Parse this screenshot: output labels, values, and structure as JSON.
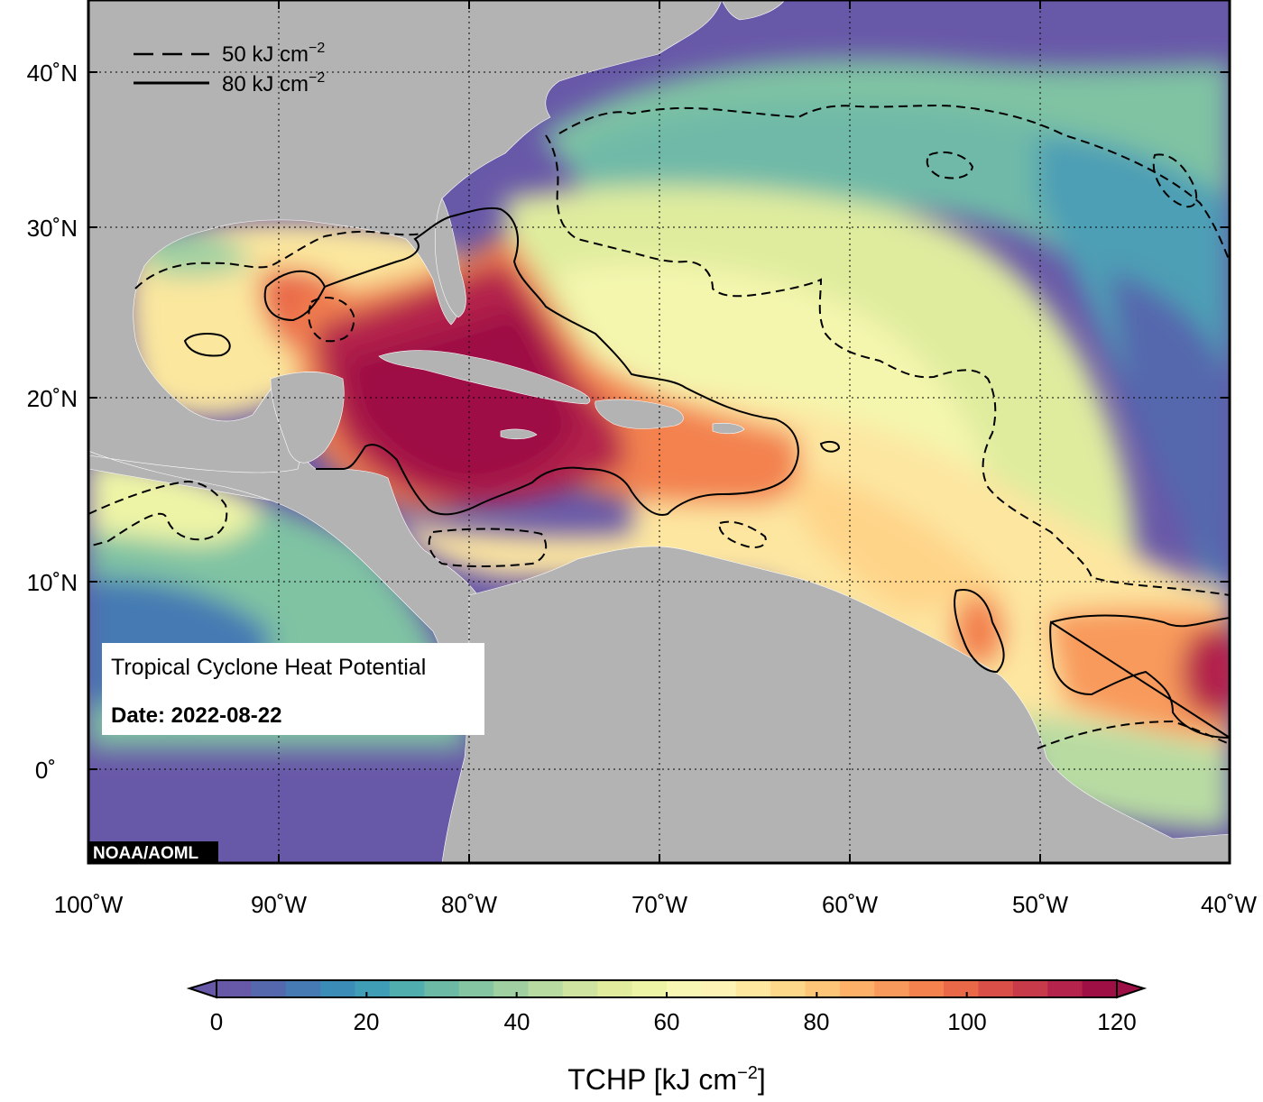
{
  "map": {
    "title": "Tropical Cyclone Heat Potential",
    "date_label": "Date: 2022-08-22",
    "credit": "NOAA/AOML",
    "lat_labels": [
      "40˚N",
      "30˚N",
      "20˚N",
      "10˚N",
      "0˚"
    ],
    "lon_labels": [
      "100˚W",
      "90˚W",
      "80˚W",
      "70˚W",
      "60˚W",
      "50˚W",
      "40˚W"
    ],
    "extent": {
      "lon_min": -100,
      "lon_max": -40,
      "lat_min": -5,
      "lat_max": 44
    },
    "grid": true,
    "legend": {
      "placement": "top-left",
      "items": [
        {
          "style": "dashed",
          "value": "50",
          "unit": "kJ cm",
          "exp": "−2"
        },
        {
          "style": "solid",
          "value": "80",
          "unit": "kJ cm",
          "exp": "−2"
        }
      ]
    },
    "colors": {
      "land": "#b3b3b3",
      "ocean_min": "#6858a8",
      "ocean_max": "#9e0f45"
    }
  },
  "colorbar": {
    "title": "TCHP [kJ cm",
    "title_exp": "−2",
    "title_end": "]",
    "min": 0,
    "max": 120,
    "tick_labels": [
      "0",
      "20",
      "40",
      "60",
      "80",
      "100",
      "120"
    ],
    "colors": [
      "#6858a8",
      "#5568ad",
      "#457ab3",
      "#3b8cb7",
      "#3f9db6",
      "#50aeaf",
      "#6cbaa6",
      "#86c5a2",
      "#a0d0a2",
      "#b8dba2",
      "#cee4a0",
      "#e1ec9c",
      "#eef4a6",
      "#f8f8b4",
      "#fdf3b4",
      "#fee8a0",
      "#fed88a",
      "#fdc577",
      "#fcb068",
      "#f89a5c",
      "#f3824f",
      "#e96848",
      "#da5048",
      "#c73a4a",
      "#b3234b",
      "#9e0f45"
    ]
  }
}
